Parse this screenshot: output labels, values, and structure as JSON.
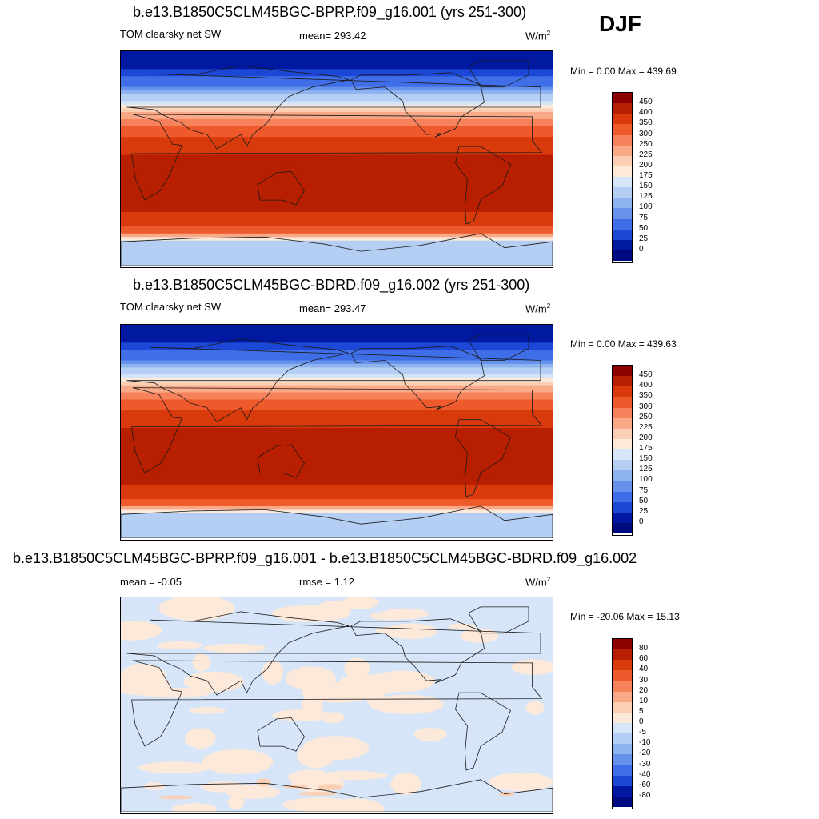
{
  "season": "DJF",
  "panels": [
    {
      "title": "b.e13.B1850C5CLM45BGC-BPRP.f09_g16.001 (yrs 251-300)",
      "left_label": "TOM clearsky net SW",
      "mid_label": "mean= 293.42",
      "units_base": "W/m",
      "units_exp": "2",
      "minmax": "Min =   0.00 Max = 439.69"
    },
    {
      "title": "b.e13.B1850C5CLM45BGC-BDRD.f09_g16.002 (yrs 251-300)",
      "left_label": "TOM clearsky net SW",
      "mid_label": "mean= 293.47",
      "units_base": "W/m",
      "units_exp": "2",
      "minmax": "Min =   0.00 Max = 439.63"
    },
    {
      "title": "b.e13.B1850C5CLM45BGC-BPRP.f09_g16.001 - b.e13.B1850C5CLM45BGC-BDRD.f09_g16.002",
      "left_label": "mean =  -0.05",
      "mid_label": "rmse =   1.12",
      "units_base": "W/m",
      "units_exp": "2",
      "minmax": "Min = -20.06 Max =  15.13"
    }
  ],
  "chart_data": [
    {
      "type": "heatmap",
      "title": "b.e13.B1850C5CLM45BGC-BPRP.f09_g16.001 (yrs 251-300)",
      "variable": "TOM clearsky net SW",
      "mean": 293.42,
      "min": 0.0,
      "max": 439.69,
      "units": "W/m2",
      "colorbar_levels": [
        "450",
        "400",
        "350",
        "300",
        "250",
        "225",
        "200",
        "175",
        "150",
        "125",
        "100",
        "75",
        "50",
        "25",
        "0"
      ],
      "colorbar_colors": [
        "#8b0000",
        "#b81e00",
        "#d93a0c",
        "#ef5a2c",
        "#f5825a",
        "#f9a888",
        "#fbcfb4",
        "#fde9d9",
        "#d6e6f8",
        "#b4cff3",
        "#8fb3ef",
        "#6792ec",
        "#3f6ee8",
        "#1d47d6",
        "#0019a0",
        "#000a80"
      ],
      "lat_profile": [
        {
          "lat": 90,
          "value": 0
        },
        {
          "lat": 75,
          "value": 20
        },
        {
          "lat": 60,
          "value": 80
        },
        {
          "lat": 45,
          "value": 170
        },
        {
          "lat": 30,
          "value": 280
        },
        {
          "lat": 15,
          "value": 360
        },
        {
          "lat": 0,
          "value": 410
        },
        {
          "lat": -15,
          "value": 430
        },
        {
          "lat": -30,
          "value": 425
        },
        {
          "lat": -45,
          "value": 400
        },
        {
          "lat": -60,
          "value": 330
        },
        {
          "lat": -70,
          "value": 140
        },
        {
          "lat": -90,
          "value": 130
        }
      ]
    },
    {
      "type": "heatmap",
      "title": "b.e13.B1850C5CLM45BGC-BDRD.f09_g16.002 (yrs 251-300)",
      "variable": "TOM clearsky net SW",
      "mean": 293.47,
      "min": 0.0,
      "max": 439.63,
      "units": "W/m2",
      "colorbar_levels": [
        "450",
        "400",
        "350",
        "300",
        "250",
        "225",
        "200",
        "175",
        "150",
        "125",
        "100",
        "75",
        "50",
        "25",
        "0"
      ],
      "colorbar_colors": [
        "#8b0000",
        "#b81e00",
        "#d93a0c",
        "#ef5a2c",
        "#f5825a",
        "#f9a888",
        "#fbcfb4",
        "#fde9d9",
        "#d6e6f8",
        "#b4cff3",
        "#8fb3ef",
        "#6792ec",
        "#3f6ee8",
        "#1d47d6",
        "#0019a0",
        "#000a80"
      ],
      "lat_profile": [
        {
          "lat": 90,
          "value": 0
        },
        {
          "lat": 75,
          "value": 20
        },
        {
          "lat": 60,
          "value": 80
        },
        {
          "lat": 45,
          "value": 170
        },
        {
          "lat": 30,
          "value": 280
        },
        {
          "lat": 15,
          "value": 360
        },
        {
          "lat": 0,
          "value": 410
        },
        {
          "lat": -15,
          "value": 430
        },
        {
          "lat": -30,
          "value": 425
        },
        {
          "lat": -45,
          "value": 400
        },
        {
          "lat": -60,
          "value": 330
        },
        {
          "lat": -70,
          "value": 140
        },
        {
          "lat": -90,
          "value": 130
        }
      ]
    },
    {
      "type": "heatmap",
      "title": "b.e13.B1850C5CLM45BGC-BPRP.f09_g16.001 - b.e13.B1850C5CLM45BGC-BDRD.f09_g16.002",
      "variable": "difference",
      "mean": -0.05,
      "rmse": 1.12,
      "min": -20.06,
      "max": 15.13,
      "units": "W/m2",
      "colorbar_levels": [
        "80",
        "60",
        "40",
        "30",
        "20",
        "10",
        "5",
        "0",
        "-5",
        "-10",
        "-20",
        "-30",
        "-40",
        "-60",
        "-80"
      ],
      "colorbar_colors": [
        "#8b0000",
        "#b81e00",
        "#d93a0c",
        "#ef5a2c",
        "#f5825a",
        "#f9a888",
        "#fbcfb4",
        "#fde9d9",
        "#d6e6f8",
        "#b4cff3",
        "#8fb3ef",
        "#6792ec",
        "#3f6ee8",
        "#1d47d6",
        "#0019a0",
        "#000a80"
      ]
    }
  ]
}
